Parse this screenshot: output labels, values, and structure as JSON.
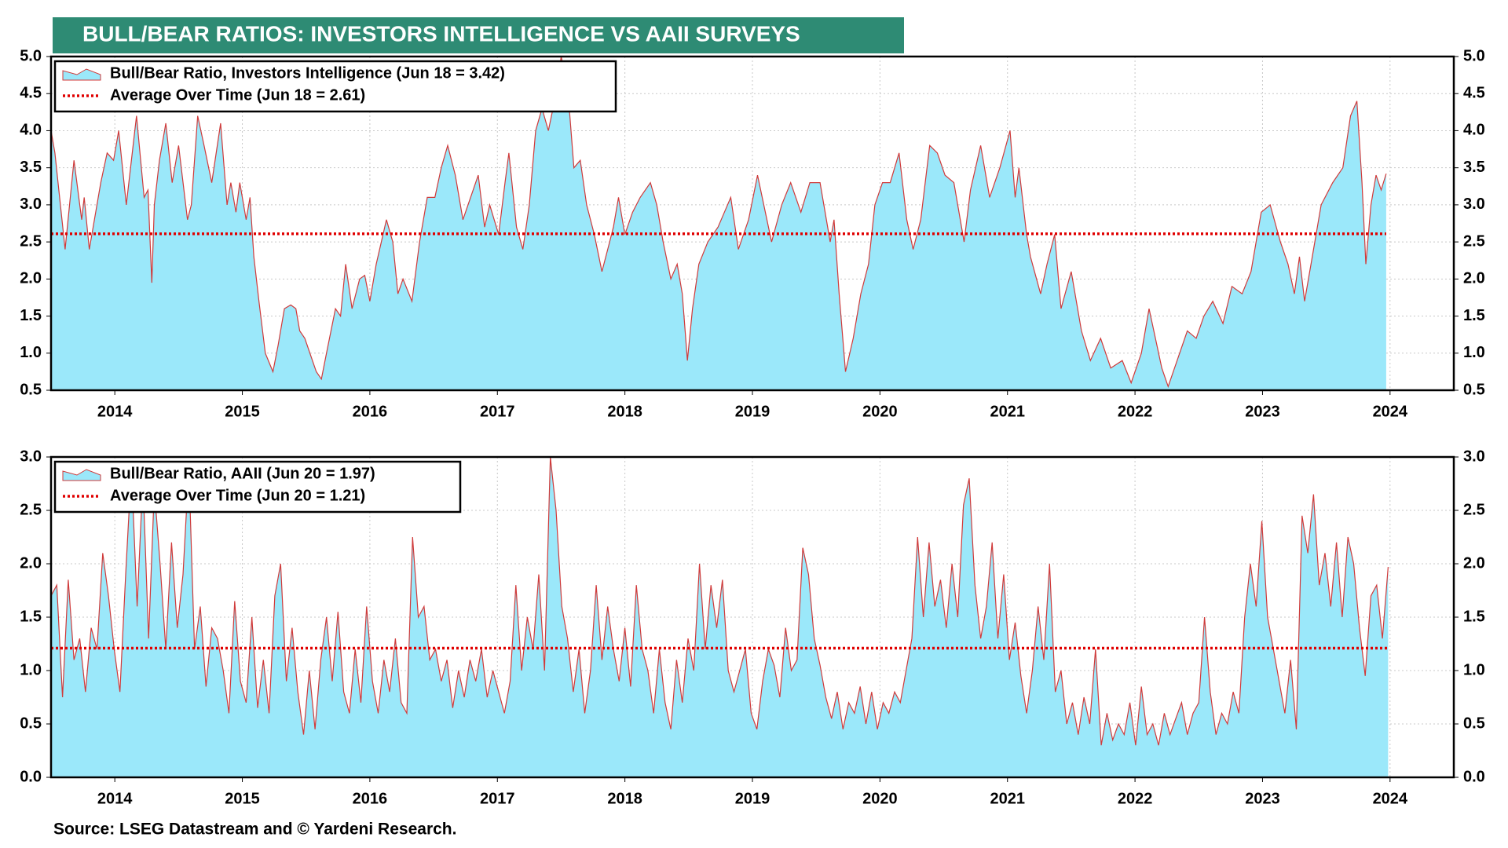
{
  "title": "BULL/BEAR RATIOS: INVESTORS INTELLIGENCE VS AAII SURVEYS",
  "source": "Source: LSEG Datastream and © Yardeni Research.",
  "chart_data": [
    {
      "type": "area",
      "xlim": [
        2014,
        2025
      ],
      "xticks": [
        {
          "value": 2014.5,
          "label": "2014"
        },
        {
          "value": 2015.5,
          "label": "2015"
        },
        {
          "value": 2016.5,
          "label": "2016"
        },
        {
          "value": 2017.5,
          "label": "2017"
        },
        {
          "value": 2018.5,
          "label": "2018"
        },
        {
          "value": 2019.5,
          "label": "2019"
        },
        {
          "value": 2020.5,
          "label": "2020"
        },
        {
          "value": 2021.5,
          "label": "2021"
        },
        {
          "value": 2022.5,
          "label": "2022"
        },
        {
          "value": 2023.5,
          "label": "2023"
        },
        {
          "value": 2024.5,
          "label": "2024"
        }
      ],
      "ylim": [
        0.5,
        5.0
      ],
      "yticks": [
        0.5,
        {
          "value": 1,
          "label": "1.0"
        },
        1.5,
        {
          "value": 2,
          "label": "2.0"
        },
        2.5,
        {
          "value": 3,
          "label": "3.0"
        },
        3.5,
        {
          "value": 4,
          "label": "4.0"
        },
        4.5,
        {
          "value": 5,
          "label": "5.0"
        }
      ],
      "grid": true,
      "x": [
        2014.0,
        2014.03,
        2014.11,
        2014.18,
        2014.24,
        2014.26,
        2014.3,
        2014.34,
        2014.39,
        2014.44,
        2014.49,
        2014.53,
        2014.59,
        2014.67,
        2014.73,
        2014.76,
        2014.79,
        2014.81,
        2014.85,
        2014.9,
        2014.95,
        2015.0,
        2015.07,
        2015.1,
        2015.15,
        2015.2,
        2015.26,
        2015.33,
        2015.38,
        2015.41,
        2015.45,
        2015.48,
        2015.53,
        2015.56,
        2015.59,
        2015.63,
        2015.68,
        2015.74,
        2015.78,
        2015.83,
        2015.88,
        2015.92,
        2015.95,
        2015.99,
        2016.05,
        2016.08,
        2016.12,
        2016.16,
        2016.23,
        2016.27,
        2016.31,
        2016.36,
        2016.42,
        2016.46,
        2016.5,
        2016.55,
        2016.59,
        2016.63,
        2016.68,
        2016.72,
        2016.76,
        2016.83,
        2016.89,
        2016.95,
        2017.01,
        2017.06,
        2017.11,
        2017.17,
        2017.23,
        2017.35,
        2017.4,
        2017.44,
        2017.51,
        2017.56,
        2017.59,
        2017.65,
        2017.7,
        2017.75,
        2017.8,
        2017.85,
        2017.9,
        2017.96,
        2018.0,
        2018.05,
        2018.1,
        2018.15,
        2018.2,
        2018.26,
        2018.32,
        2018.38,
        2018.41,
        2018.45,
        2018.5,
        2018.56,
        2018.62,
        2018.7,
        2018.75,
        2018.8,
        2018.86,
        2018.91,
        2018.95,
        2018.99,
        2019.03,
        2019.08,
        2019.15,
        2019.23,
        2019.28,
        2019.33,
        2019.39,
        2019.47,
        2019.54,
        2019.65,
        2019.73,
        2019.8,
        2019.88,
        2019.95,
        2020.03,
        2020.11,
        2020.14,
        2020.18,
        2020.23,
        2020.29,
        2020.35,
        2020.41,
        2020.46,
        2020.52,
        2020.58,
        2020.65,
        2020.71,
        2020.76,
        2020.82,
        2020.89,
        2020.95,
        2021.01,
        2021.08,
        2021.16,
        2021.21,
        2021.29,
        2021.36,
        2021.44,
        2021.52,
        2021.56,
        2021.59,
        2021.65,
        2021.68,
        2021.76,
        2021.81,
        2021.87,
        2021.92,
        2022.0,
        2022.08,
        2022.15,
        2022.23,
        2022.31,
        2022.4,
        2022.47,
        2022.55,
        2022.61,
        2022.66,
        2022.71,
        2022.76,
        2022.83,
        2022.91,
        2022.98,
        2023.04,
        2023.11,
        2023.19,
        2023.26,
        2023.34,
        2023.41,
        2023.49,
        2023.56,
        2023.64,
        2023.7,
        2023.75,
        2023.79,
        2023.83,
        2023.89,
        2023.96,
        2024.05,
        2024.13,
        2024.19,
        2024.24,
        2024.28,
        2024.31,
        2024.35,
        2024.39,
        2024.43,
        2024.47
      ],
      "series": [
        {
          "name": "Bull/Bear Ratio, Investors Intelligence (Jun 18 = 3.42)",
          "color": "#9be8fa",
          "line_color": "#d03a3a",
          "values": [
            4.0,
            3.7,
            2.4,
            3.6,
            2.8,
            3.1,
            2.4,
            2.8,
            3.3,
            3.7,
            3.6,
            4.0,
            3.0,
            4.2,
            3.1,
            3.2,
            1.95,
            3.0,
            3.6,
            4.1,
            3.3,
            3.8,
            2.8,
            3.0,
            4.2,
            3.8,
            3.3,
            4.1,
            3.0,
            3.3,
            2.9,
            3.3,
            2.8,
            3.1,
            2.3,
            1.7,
            1.0,
            0.75,
            1.1,
            1.6,
            1.65,
            1.6,
            1.3,
            1.2,
            0.9,
            0.75,
            0.65,
            1.0,
            1.6,
            1.5,
            2.2,
            1.6,
            2.0,
            2.05,
            1.7,
            2.2,
            2.5,
            2.8,
            2.5,
            1.8,
            2.0,
            1.7,
            2.5,
            3.1,
            3.1,
            3.5,
            3.8,
            3.4,
            2.8,
            3.4,
            2.7,
            3.0,
            2.6,
            3.3,
            3.7,
            2.7,
            2.4,
            3.0,
            4.0,
            4.3,
            4.0,
            4.5,
            5.0,
            4.6,
            3.5,
            3.6,
            3.0,
            2.6,
            2.1,
            2.5,
            2.7,
            3.1,
            2.6,
            2.9,
            3.1,
            3.3,
            3.0,
            2.5,
            2.0,
            2.2,
            1.8,
            0.9,
            1.6,
            2.2,
            2.5,
            2.7,
            2.9,
            3.1,
            2.4,
            2.8,
            3.4,
            2.5,
            3.0,
            3.3,
            2.9,
            3.3,
            3.3,
            2.5,
            2.8,
            1.8,
            0.75,
            1.2,
            1.8,
            2.2,
            3.0,
            3.3,
            3.3,
            3.7,
            2.8,
            2.4,
            2.8,
            3.8,
            3.7,
            3.4,
            3.3,
            2.5,
            3.2,
            3.8,
            3.1,
            3.5,
            4.0,
            3.1,
            3.5,
            2.6,
            2.3,
            1.8,
            2.2,
            2.6,
            1.6,
            2.1,
            1.3,
            0.9,
            1.2,
            0.8,
            0.9,
            0.6,
            1.0,
            1.6,
            1.2,
            0.8,
            0.55,
            0.9,
            1.3,
            1.2,
            1.5,
            1.7,
            1.4,
            1.9,
            1.8,
            2.1,
            2.9,
            3.0,
            2.5,
            2.2,
            1.8,
            2.3,
            1.7,
            2.3,
            3.0,
            3.3,
            3.5,
            4.2,
            4.4,
            3.3,
            2.2,
            3.0,
            3.4,
            3.2,
            3.42
          ]
        }
      ],
      "reference_line": {
        "name": "Average Over Time (Jun 18 = 2.61)",
        "value": 2.61,
        "color": "#e00000"
      }
    },
    {
      "type": "area",
      "xlim": [
        2014,
        2025
      ],
      "xticks": [
        {
          "value": 2014.5,
          "label": "2014"
        },
        {
          "value": 2015.5,
          "label": "2015"
        },
        {
          "value": 2016.5,
          "label": "2016"
        },
        {
          "value": 2017.5,
          "label": "2017"
        },
        {
          "value": 2018.5,
          "label": "2018"
        },
        {
          "value": 2019.5,
          "label": "2019"
        },
        {
          "value": 2020.5,
          "label": "2020"
        },
        {
          "value": 2021.5,
          "label": "2021"
        },
        {
          "value": 2022.5,
          "label": "2022"
        },
        {
          "value": 2023.5,
          "label": "2023"
        },
        {
          "value": 2024.5,
          "label": "2024"
        }
      ],
      "ylim": [
        0,
        3.0
      ],
      "yticks": [
        {
          "value": 0,
          "label": "0.0"
        },
        0.5,
        {
          "value": 1,
          "label": "1.0"
        },
        1.5,
        {
          "value": 2,
          "label": "2.0"
        },
        2.5,
        {
          "value": 3,
          "label": "3.0"
        }
      ],
      "grid": true,
      "x": [
        2014,
        2014.045,
        2014.09,
        2014.135,
        2014.18,
        2014.225,
        2014.27,
        2014.315,
        2014.36,
        2014.405,
        2014.45,
        2014.495,
        2014.54,
        2014.585,
        2014.63,
        2014.675,
        2014.72,
        2014.765,
        2014.81,
        2014.855,
        2014.9,
        2014.945,
        2014.99,
        2015.035,
        2015.08,
        2015.125,
        2015.17,
        2015.215,
        2015.26,
        2015.305,
        2015.35,
        2015.395,
        2015.44,
        2015.485,
        2015.53,
        2015.575,
        2015.62,
        2015.665,
        2015.71,
        2015.755,
        2015.8,
        2015.845,
        2015.89,
        2015.935,
        2015.98,
        2016.025,
        2016.07,
        2016.115,
        2016.16,
        2016.205,
        2016.25,
        2016.295,
        2016.34,
        2016.385,
        2016.43,
        2016.475,
        2016.52,
        2016.565,
        2016.61,
        2016.655,
        2016.7,
        2016.745,
        2016.79,
        2016.835,
        2016.88,
        2016.925,
        2016.97,
        2017.015,
        2017.06,
        2017.105,
        2017.15,
        2017.195,
        2017.24,
        2017.285,
        2017.33,
        2017.375,
        2017.42,
        2017.465,
        2017.51,
        2017.555,
        2017.6,
        2017.645,
        2017.69,
        2017.735,
        2017.78,
        2017.825,
        2017.87,
        2017.915,
        2017.96,
        2018.005,
        2018.05,
        2018.095,
        2018.14,
        2018.185,
        2018.23,
        2018.275,
        2018.32,
        2018.365,
        2018.41,
        2018.455,
        2018.5,
        2018.545,
        2018.59,
        2018.635,
        2018.68,
        2018.725,
        2018.77,
        2018.815,
        2018.86,
        2018.905,
        2018.95,
        2018.995,
        2019.04,
        2019.085,
        2019.13,
        2019.175,
        2019.22,
        2019.265,
        2019.31,
        2019.355,
        2019.4,
        2019.445,
        2019.49,
        2019.535,
        2019.58,
        2019.625,
        2019.67,
        2019.715,
        2019.76,
        2019.805,
        2019.85,
        2019.895,
        2019.94,
        2019.985,
        2020.03,
        2020.075,
        2020.12,
        2020.165,
        2020.21,
        2020.255,
        2020.3,
        2020.345,
        2020.39,
        2020.435,
        2020.48,
        2020.525,
        2020.57,
        2020.615,
        2020.66,
        2020.705,
        2020.75,
        2020.795,
        2020.84,
        2020.885,
        2020.93,
        2020.975,
        2021.02,
        2021.065,
        2021.11,
        2021.155,
        2021.2,
        2021.245,
        2021.29,
        2021.335,
        2021.38,
        2021.425,
        2021.47,
        2021.515,
        2021.56,
        2021.605,
        2021.65,
        2021.695,
        2021.74,
        2021.785,
        2021.83,
        2021.875,
        2021.92,
        2021.965,
        2022.01,
        2022.055,
        2022.1,
        2022.145,
        2022.19,
        2022.235,
        2022.28,
        2022.325,
        2022.37,
        2022.415,
        2022.46,
        2022.505,
        2022.55,
        2022.595,
        2022.64,
        2022.685,
        2022.73,
        2022.775,
        2022.82,
        2022.865,
        2022.91,
        2022.955,
        2023,
        2023.045,
        2023.09,
        2023.135,
        2023.18,
        2023.225,
        2023.27,
        2023.315,
        2023.36,
        2023.405,
        2023.45,
        2023.495,
        2023.54,
        2023.585,
        2023.63,
        2023.675,
        2023.72,
        2023.765,
        2023.81,
        2023.855,
        2023.9,
        2023.945,
        2023.99,
        2024.035,
        2024.08,
        2024.125,
        2024.17,
        2024.215,
        2024.26,
        2024.305,
        2024.35,
        2024.395,
        2024.44,
        2024.485
      ],
      "series": [
        {
          "name": "Bull/Bear Ratio, AAII (Jun 20 = 1.97)",
          "color": "#9be8fa",
          "line_color": "#d03a3a",
          "values": [
            1.7,
            1.8,
            0.75,
            1.85,
            1.1,
            1.3,
            0.8,
            1.4,
            1.2,
            2.1,
            1.7,
            1.2,
            0.8,
            1.9,
            2.9,
            1.6,
            2.8,
            1.3,
            2.7,
            2.0,
            1.2,
            2.2,
            1.4,
            1.9,
            2.9,
            1.2,
            1.6,
            0.85,
            1.4,
            1.3,
            1.0,
            0.6,
            1.65,
            0.9,
            0.7,
            1.5,
            0.65,
            1.1,
            0.6,
            1.7,
            2.0,
            0.9,
            1.4,
            0.8,
            0.4,
            1.0,
            0.45,
            1.1,
            1.5,
            0.9,
            1.55,
            0.8,
            0.6,
            1.2,
            0.7,
            1.6,
            0.9,
            0.6,
            1.1,
            0.8,
            1.3,
            0.7,
            0.6,
            2.25,
            1.5,
            1.6,
            1.1,
            1.2,
            0.9,
            1.1,
            0.65,
            1.0,
            0.75,
            1.1,
            0.9,
            1.2,
            0.75,
            1.0,
            0.8,
            0.6,
            0.9,
            1.8,
            1.0,
            1.5,
            1.2,
            1.9,
            1.0,
            3.0,
            2.5,
            1.6,
            1.3,
            0.8,
            1.2,
            0.6,
            1.0,
            1.8,
            1.1,
            1.6,
            1.2,
            0.9,
            1.4,
            0.85,
            1.8,
            1.2,
            1.0,
            0.6,
            1.2,
            0.7,
            0.45,
            1.1,
            0.7,
            1.3,
            1.0,
            2.0,
            1.2,
            1.8,
            1.4,
            1.85,
            1.0,
            0.8,
            1.0,
            1.2,
            0.6,
            0.45,
            0.9,
            1.2,
            1.05,
            0.75,
            1.4,
            1.0,
            1.1,
            2.15,
            1.9,
            1.3,
            1.05,
            0.75,
            0.55,
            0.8,
            0.45,
            0.7,
            0.6,
            0.85,
            0.5,
            0.8,
            0.45,
            0.7,
            0.6,
            0.8,
            0.7,
            1.0,
            1.3,
            2.25,
            1.5,
            2.2,
            1.6,
            1.85,
            1.4,
            2.0,
            1.5,
            2.55,
            2.8,
            1.8,
            1.3,
            1.6,
            2.2,
            1.3,
            1.9,
            1.1,
            1.45,
            0.95,
            0.6,
            1.0,
            1.6,
            1.1,
            2.0,
            0.8,
            1.0,
            0.5,
            0.7,
            0.4,
            0.75,
            0.5,
            1.2,
            0.3,
            0.6,
            0.35,
            0.5,
            0.4,
            0.7,
            0.3,
            0.85,
            0.4,
            0.5,
            0.3,
            0.6,
            0.4,
            0.55,
            0.7,
            0.4,
            0.6,
            0.7,
            1.5,
            0.8,
            0.4,
            0.6,
            0.5,
            0.8,
            0.6,
            1.5,
            2.0,
            1.6,
            2.4,
            1.5,
            1.2,
            0.9,
            0.6,
            1.1,
            0.45,
            2.45,
            2.1,
            2.65,
            1.8,
            2.1,
            1.6,
            2.2,
            1.5,
            2.25,
            2.0,
            1.4,
            0.95,
            1.7,
            1.8,
            1.3,
            1.97
          ]
        }
      ],
      "reference_line": {
        "name": "Average Over Time (Jun 20 = 1.21)",
        "value": 1.21,
        "color": "#e00000"
      }
    }
  ]
}
